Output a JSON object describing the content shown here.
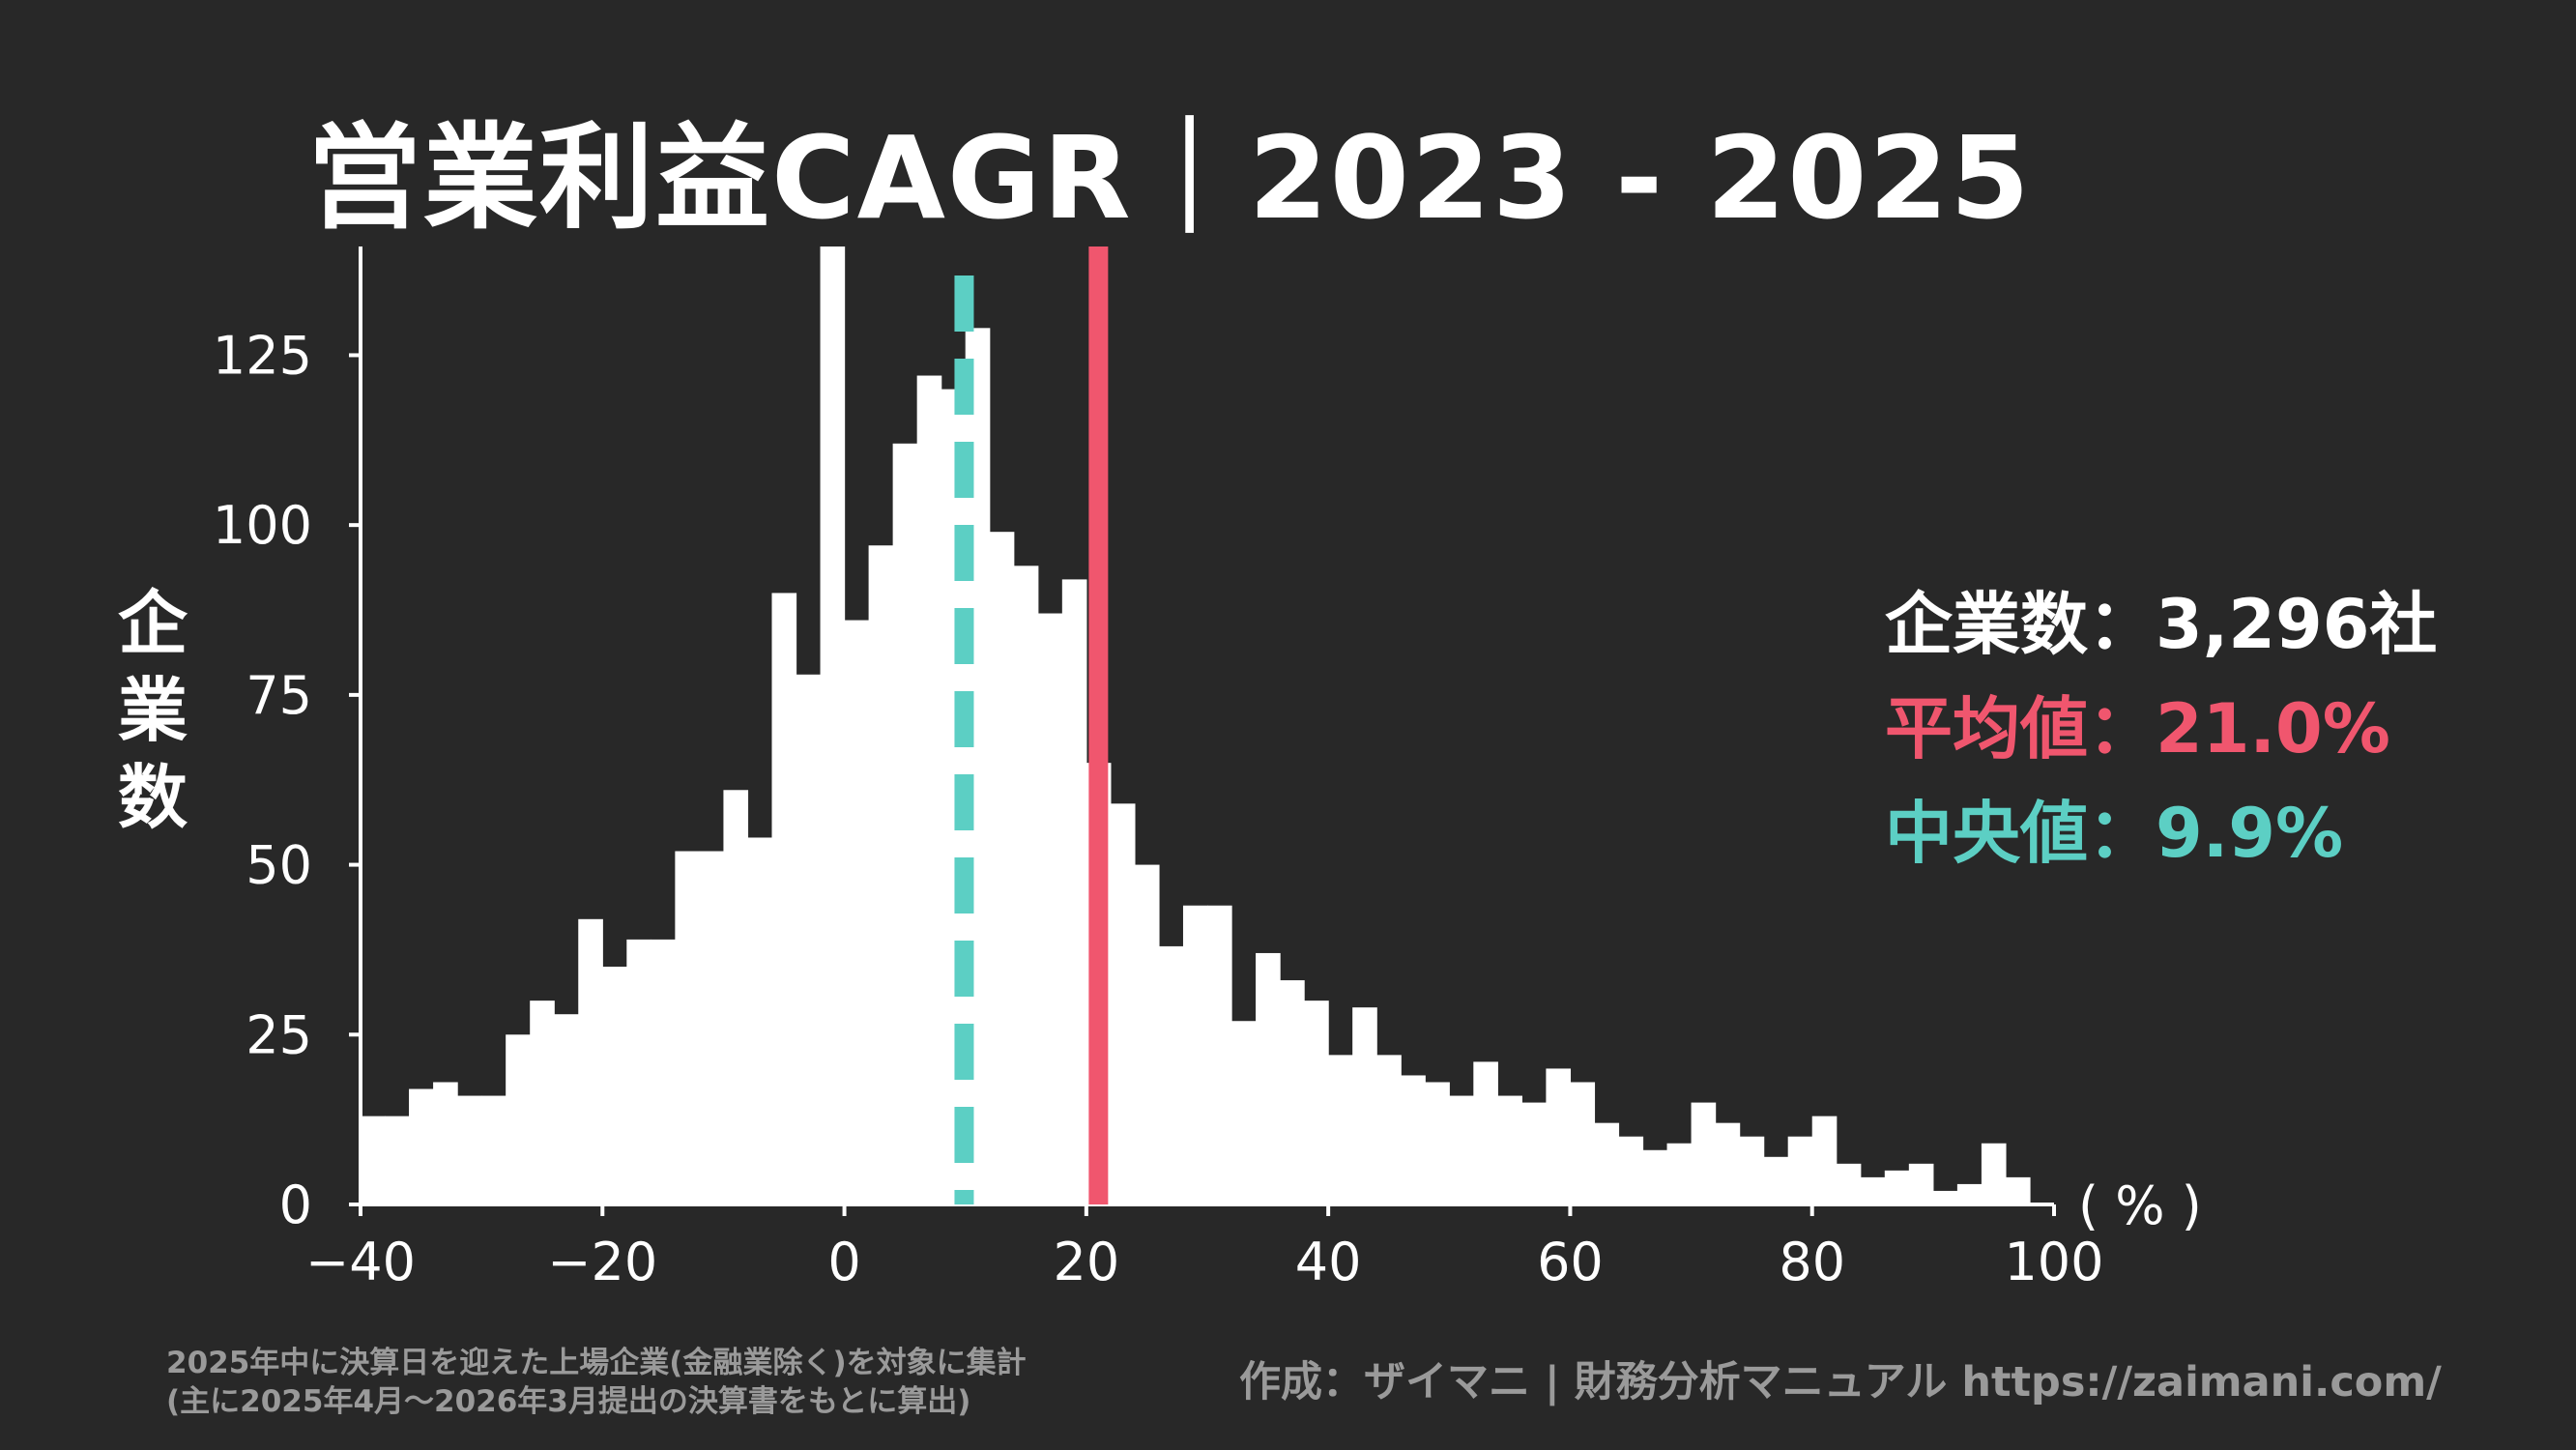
{
  "title": "営業利益CAGR｜2023 - 2025",
  "ylabel_chars": [
    "企",
    "業",
    "数"
  ],
  "stats": {
    "count_label": "企業数：3,296社",
    "mean_label": "平均値：21.0%",
    "median_label": "中央値：9.9%"
  },
  "footnote": {
    "line1": "2025年中に決算日を迎えた上場企業(金融業除く)を対象に集計",
    "line2": "(主に2025年4月～2026年3月提出の決算書をもとに算出)"
  },
  "credit": "作成：ザイマニ | 財務分析マニュアル https://zaimani.com/",
  "colors": {
    "background": "#282828",
    "bars": "#ffffff",
    "mean": "#f0566e",
    "median": "#5ccfc4",
    "muted": "#9a9a9a"
  },
  "chart_data": {
    "type": "bar",
    "bin_width": 2,
    "bin_start": -40,
    "values": [
      13,
      13,
      17,
      18,
      16,
      16,
      25,
      30,
      28,
      42,
      35,
      39,
      39,
      52,
      52,
      61,
      54,
      90,
      78,
      141,
      86,
      97,
      112,
      122,
      120,
      129,
      99,
      94,
      87,
      92,
      65,
      59,
      50,
      38,
      44,
      44,
      27,
      37,
      33,
      30,
      22,
      29,
      22,
      19,
      18,
      16,
      21,
      16,
      15,
      20,
      18,
      12,
      10,
      8,
      9,
      15,
      12,
      10,
      7,
      10,
      13,
      6,
      4,
      5,
      6,
      2,
      3,
      9,
      4
    ],
    "xlim": [
      -40,
      100
    ],
    "ylim": [
      0,
      141
    ],
    "x_ticks": [
      -40,
      -20,
      0,
      20,
      40,
      60,
      80,
      100
    ],
    "x_tick_labels": [
      "−40",
      "−20",
      "0",
      "20",
      "40",
      "60",
      "80",
      "100"
    ],
    "y_ticks": [
      0,
      25,
      50,
      75,
      100,
      125
    ],
    "x_unit": "( % )",
    "mean": 21.0,
    "median": 9.9
  }
}
